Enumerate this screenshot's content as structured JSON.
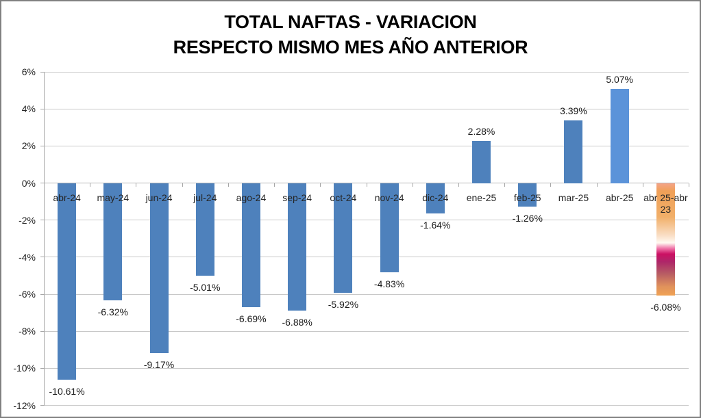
{
  "title": {
    "line1": "TOTAL NAFTAS - VARIACION",
    "line2": "RESPECTO MISMO MES AÑO ANTERIOR"
  },
  "colors": {
    "bar_default": "#4E81BC",
    "bar_highlight": "#5B93D9",
    "gridline": "#C8C8C8",
    "zero_line": "#B5B5B5",
    "axis": "#A6A6A6",
    "label_text": "#262626",
    "title_text": "#000000",
    "border": "#808080",
    "background": "#FFFFFF"
  },
  "chart_data": {
    "type": "bar",
    "title": "TOTAL NAFTAS - VARIACION RESPECTO MISMO MES AÑO ANTERIOR",
    "xlabel": "",
    "ylabel": "",
    "categories": [
      "abr-24",
      "may-24",
      "jun-24",
      "jul-24",
      "ago-24",
      "sep-24",
      "oct-24",
      "nov-24",
      "dic-24",
      "ene-25",
      "feb-25",
      "mar-25",
      "abr-25",
      "abr 25-abr 23"
    ],
    "values": [
      -10.61,
      -6.32,
      -9.17,
      -5.01,
      -6.69,
      -6.88,
      -5.92,
      -4.83,
      -1.64,
      2.28,
      -1.26,
      3.39,
      5.07,
      -6.08
    ],
    "data_labels": [
      "-10.61%",
      "-6.32%",
      "-9.17%",
      "-5.01%",
      "-6.69%",
      "-6.88%",
      "-5.92%",
      "-4.83%",
      "-1.64%",
      "2.28%",
      "-1.26%",
      "3.39%",
      "5.07%",
      "-6.08%"
    ],
    "ylim": [
      -12,
      6
    ],
    "ytick_step": 2,
    "ytick_labels": [
      "6%",
      "4%",
      "2%",
      "0%",
      "-2%",
      "-4%",
      "-6%",
      "-8%",
      "-10%",
      "-12%"
    ],
    "grid": true,
    "legend": false,
    "highlight_index": 12,
    "gradient_index": 13,
    "gradient_stops": [
      {
        "pos": 0.0,
        "color": "#F4A489"
      },
      {
        "pos": 0.07,
        "color": "#F0A057"
      },
      {
        "pos": 0.3,
        "color": "#F1AF69"
      },
      {
        "pos": 0.46,
        "color": "#F9DDC3"
      },
      {
        "pos": 0.53,
        "color": "#FFF9F1"
      },
      {
        "pos": 0.58,
        "color": "#F075A9"
      },
      {
        "pos": 0.63,
        "color": "#CB1063"
      },
      {
        "pos": 0.7,
        "color": "#AE2769"
      },
      {
        "pos": 0.8,
        "color": "#B65A64"
      },
      {
        "pos": 0.92,
        "color": "#E0925C"
      },
      {
        "pos": 1.0,
        "color": "#F0A254"
      }
    ]
  }
}
